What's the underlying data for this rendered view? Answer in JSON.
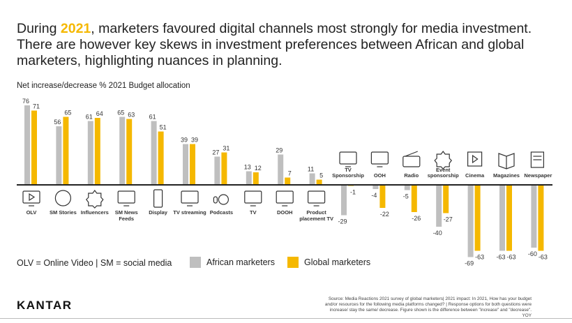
{
  "title": {
    "before": "During ",
    "highlight": "2021",
    "after": ", marketers favoured digital channels most strongly for media investment. There are however key skews in investment preferences between African and global marketers, highlighting nuances in planning."
  },
  "subtitle": "Net increase/decrease % 2021 Budget allocation",
  "legend_note": "OLV = Online Video | SM = social media",
  "logo": "KANTAR",
  "source": "Source: Media Reactions 2021 survey of global marketers| 2021 impact: In 2021, How has your budget and/or resources for the following media platforms changed? | Response options for both questions were increase/ stay the same/ decrease. Figure shown is the difference between \"increase\" and \"decrease\". YOY",
  "colors": {
    "african": "#bfbfbf",
    "global": "#f5b800",
    "axis": "#222222"
  },
  "chart_data": {
    "type": "bar",
    "title": "",
    "ylabel": "Net increase/decrease % 2021 Budget allocation",
    "ylim": [
      -70,
      80
    ],
    "grid": false,
    "legend_placement": "bottom",
    "categories": [
      {
        "label": [
          "OLV"
        ],
        "icon": "laptop-play-icon"
      },
      {
        "label": [
          "SM Stories"
        ],
        "icon": "stories-circle-icon"
      },
      {
        "label": [
          "Influencers"
        ],
        "icon": "verified-badge-icon"
      },
      {
        "label": [
          "SM News",
          "Feeds"
        ],
        "icon": "laptop-news-icon"
      },
      {
        "label": [
          "Display"
        ],
        "icon": "tablet-megaphone-icon"
      },
      {
        "label": [
          "TV streaming"
        ],
        "icon": "tv-broadcast-icon"
      },
      {
        "label": [
          "Podcasts"
        ],
        "icon": "podcast-microphone-icon"
      },
      {
        "label": [
          "TV"
        ],
        "icon": "tv-icon"
      },
      {
        "label": [
          "DOOH"
        ],
        "icon": "digital-billboard-icon"
      },
      {
        "label": [
          "Product",
          "placement TV"
        ],
        "icon": "tv-box-icon"
      },
      {
        "label": [
          "TV",
          "Sponsorship"
        ],
        "icon": "tv-handshake-icon"
      },
      {
        "label": [
          "OOH"
        ],
        "icon": "billboard-icon"
      },
      {
        "label": [
          "Radio"
        ],
        "icon": "radio-icon"
      },
      {
        "label": [
          "Event",
          "sponsorship"
        ],
        "icon": "event-star-icon"
      },
      {
        "label": [
          "Cinema"
        ],
        "icon": "film-icon"
      },
      {
        "label": [
          "Magazines"
        ],
        "icon": "open-book-icon"
      },
      {
        "label": [
          "Newspaper"
        ],
        "icon": "newspaper-icon"
      }
    ],
    "series": [
      {
        "name": "African marketers",
        "values": [
          76,
          56,
          61,
          65,
          61,
          39,
          27,
          13,
          29,
          11,
          -29,
          -4,
          -5,
          -40,
          -69,
          -63,
          -60
        ]
      },
      {
        "name": "Global marketers",
        "values": [
          71,
          65,
          64,
          63,
          51,
          39,
          31,
          12,
          7,
          5,
          -1,
          -22,
          -26,
          -27,
          -63,
          -63,
          -63
        ]
      }
    ]
  }
}
